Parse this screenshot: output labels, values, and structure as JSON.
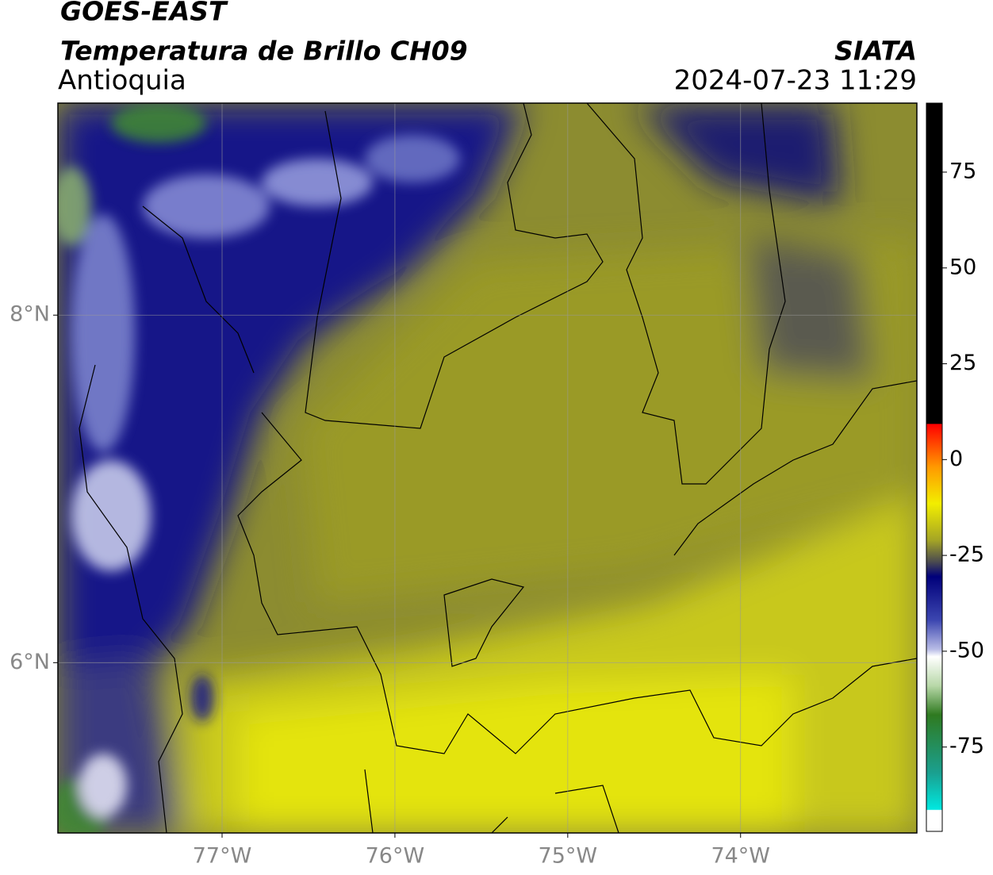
{
  "header": {
    "title": "GOES-EAST",
    "subtitle": "Temperatura de Brillo CH09",
    "region": "Antioquia",
    "source": "SIATA",
    "timestamp": "2024-07-23 11:29"
  },
  "map": {
    "xlim": [
      -77.95,
      -72.98
    ],
    "ylim": [
      5.02,
      9.22
    ],
    "xticks": [
      {
        "value": -77,
        "label": "77°W"
      },
      {
        "value": -76,
        "label": "76°W"
      },
      {
        "value": -75,
        "label": "75°W"
      },
      {
        "value": -74,
        "label": "74°W"
      }
    ],
    "yticks": [
      {
        "value": 6,
        "label": "6°N"
      },
      {
        "value": 8,
        "label": "8°N"
      }
    ],
    "grid": true
  },
  "colorbar": {
    "lim": [
      -97,
      93
    ],
    "ticks": [
      -75,
      -50,
      -25,
      0,
      25,
      50,
      75
    ]
  }
}
